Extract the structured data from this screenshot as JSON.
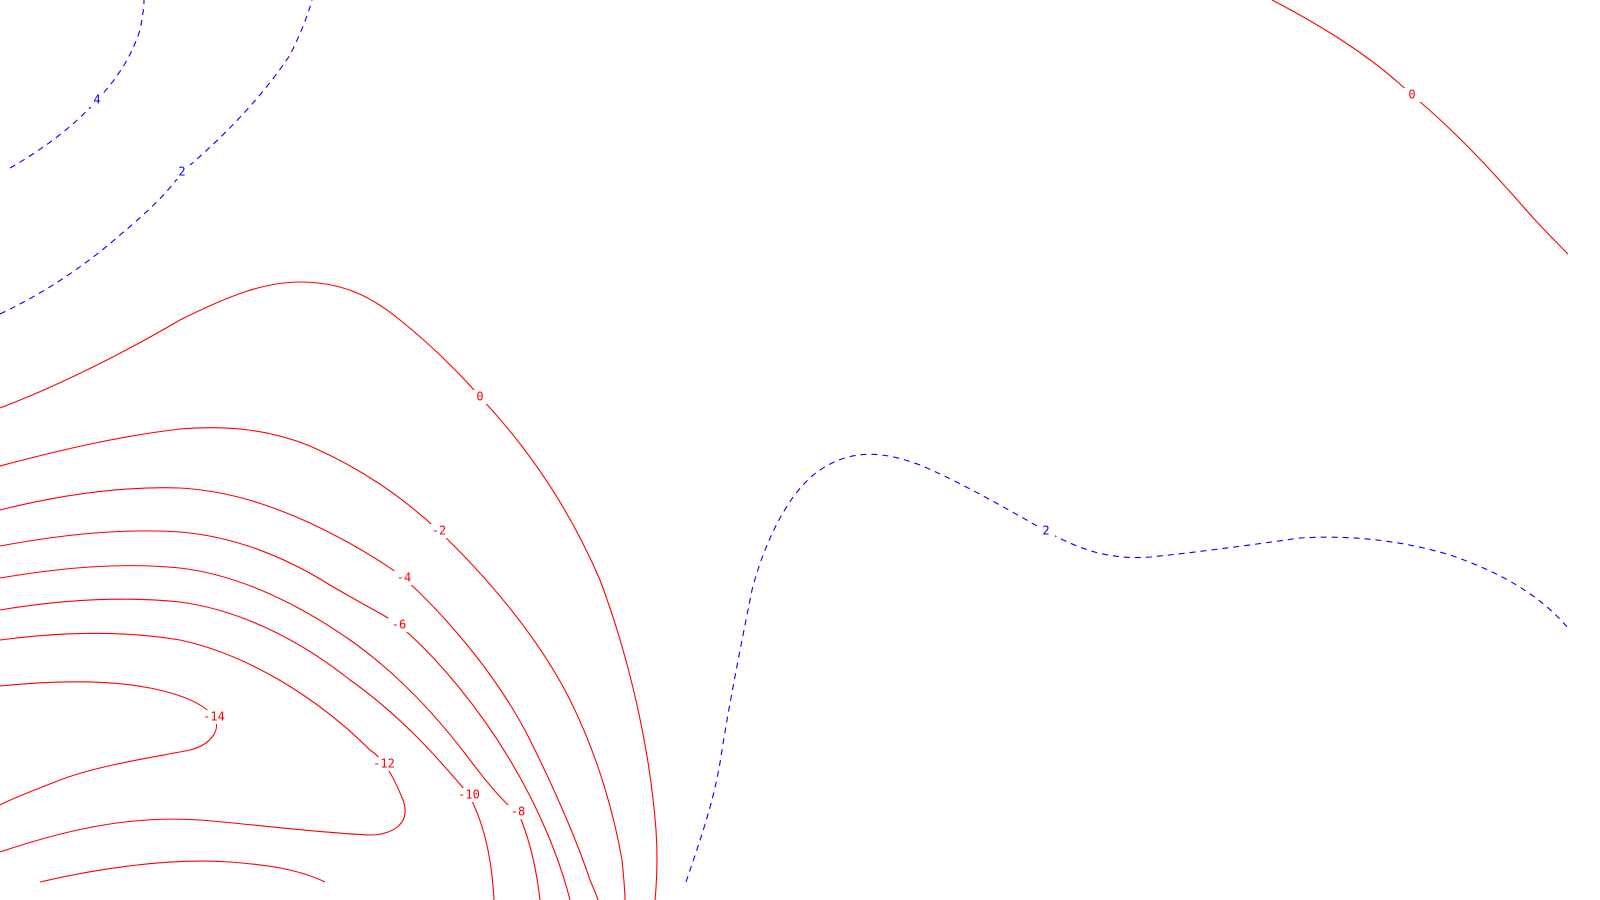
{
  "map": {
    "type": "contour",
    "colors": {
      "background": "#ffffff",
      "negative_contour": "#ff0000",
      "positive_contour": "#0000ff"
    },
    "contours": [
      {
        "id": "c-neg14",
        "level": -14,
        "label": "-14",
        "color": "#ff0000",
        "style": "solid"
      },
      {
        "id": "c-neg12",
        "level": -12,
        "label": "-12",
        "color": "#ff0000",
        "style": "solid"
      },
      {
        "id": "c-neg10",
        "level": -10,
        "label": "-10",
        "color": "#ff0000",
        "style": "solid"
      },
      {
        "id": "c-neg8",
        "level": -8,
        "label": "-8",
        "color": "#ff0000",
        "style": "solid"
      },
      {
        "id": "c-neg6",
        "level": -6,
        "label": "-6",
        "color": "#ff0000",
        "style": "solid"
      },
      {
        "id": "c-neg4",
        "level": -4,
        "label": "-4",
        "color": "#ff0000",
        "style": "solid"
      },
      {
        "id": "c-neg2",
        "level": -2,
        "label": "-2",
        "color": "#ff0000",
        "style": "solid"
      },
      {
        "id": "c-zero-left",
        "level": 0,
        "label": "0",
        "color": "#ff0000",
        "style": "solid"
      },
      {
        "id": "c-zero-right",
        "level": 0,
        "label": "0",
        "color": "#ff0000",
        "style": "solid"
      },
      {
        "id": "c-pos2-middle",
        "level": 2,
        "label": "2",
        "color": "#0000ff",
        "style": "dashed"
      },
      {
        "id": "c-pos2-topleft",
        "level": 2,
        "label": "2",
        "color": "#0000ff",
        "style": "dashed"
      },
      {
        "id": "c-pos4-topleft",
        "level": 4,
        "label": "4",
        "color": "#0000ff",
        "style": "dashed"
      }
    ]
  }
}
